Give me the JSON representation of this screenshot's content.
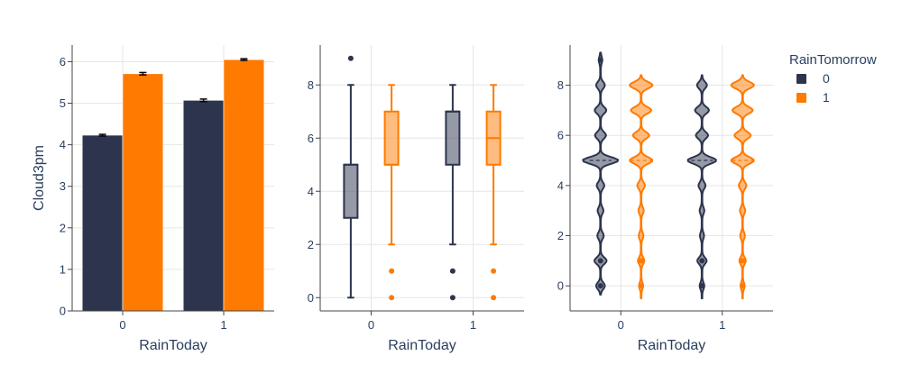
{
  "legend": {
    "title": "RainTomorrow",
    "items": [
      {
        "label": "0",
        "color": "#2d354e"
      },
      {
        "label": "1",
        "color": "#ff7a00"
      }
    ]
  },
  "chart_data": [
    {
      "type": "bar",
      "xlabel": "RainToday",
      "ylabel": "Cloud3pm",
      "categories": [
        "0",
        "1"
      ],
      "ylim": [
        0,
        6.4
      ],
      "yticks": [
        0,
        1,
        2,
        3,
        4,
        5,
        6
      ],
      "grid": true,
      "series": [
        {
          "name": "0",
          "color": "#2d354e",
          "values": [
            4.23,
            5.07
          ],
          "errors": [
            0.02,
            0.03
          ]
        },
        {
          "name": "1",
          "color": "#ff7a00",
          "values": [
            5.71,
            6.05
          ],
          "errors": [
            0.03,
            0.02
          ]
        }
      ]
    },
    {
      "type": "box",
      "xlabel": "RainToday",
      "categories": [
        "0",
        "1"
      ],
      "ylim": [
        -0.5,
        9.5
      ],
      "yticks": [
        0,
        2,
        4,
        6,
        8
      ],
      "grid": true,
      "series": [
        {
          "name": "0",
          "color": "#2d354e",
          "boxes": [
            {
              "min": 0,
              "q1": 3,
              "median": 5,
              "q3": 5,
              "max": 8,
              "outliers": [
                9
              ]
            },
            {
              "min": 2,
              "q1": 5,
              "median": 7,
              "q3": 7,
              "max": 8,
              "outliers": [
                1,
                0
              ]
            }
          ]
        },
        {
          "name": "1",
          "color": "#ff7a00",
          "boxes": [
            {
              "min": 2,
              "q1": 5,
              "median": 5,
              "q3": 7,
              "max": 8,
              "outliers": [
                1,
                0
              ]
            },
            {
              "min": 2,
              "q1": 5,
              "median": 6,
              "q3": 7,
              "max": 8,
              "outliers": [
                1,
                0
              ]
            }
          ]
        }
      ]
    },
    {
      "type": "violin",
      "xlabel": "RainToday",
      "categories": [
        "0",
        "1"
      ],
      "ylim": [
        -1,
        9.6
      ],
      "yticks": [
        0,
        2,
        4,
        6,
        8
      ],
      "grid": true,
      "series": [
        {
          "name": "0",
          "color": "#2d354e",
          "violins": [
            {
              "range": [
                -0.35,
                9.3
              ],
              "median": 5,
              "points": [
                9,
                1,
                0
              ],
              "peaks": [
                {
                  "y": 0,
                  "w": 0.7
                },
                {
                  "y": 1,
                  "w": 1.0
                },
                {
                  "y": 2,
                  "w": 0.5
                },
                {
                  "y": 3,
                  "w": 0.45
                },
                {
                  "y": 4,
                  "w": 0.6
                },
                {
                  "y": 5,
                  "w": 3.0
                },
                {
                  "y": 6,
                  "w": 0.9
                },
                {
                  "y": 7,
                  "w": 0.95
                },
                {
                  "y": 8,
                  "w": 0.7
                },
                {
                  "y": 9,
                  "w": 0.25
                }
              ]
            },
            {
              "range": [
                -0.5,
                8.4
              ],
              "median": 5,
              "points": [
                1,
                0
              ],
              "peaks": [
                {
                  "y": 0,
                  "w": 0.35
                },
                {
                  "y": 1,
                  "w": 0.75
                },
                {
                  "y": 2,
                  "w": 0.3
                },
                {
                  "y": 3,
                  "w": 0.35
                },
                {
                  "y": 4,
                  "w": 0.55
                },
                {
                  "y": 5,
                  "w": 2.4
                },
                {
                  "y": 6,
                  "w": 1.0
                },
                {
                  "y": 7,
                  "w": 1.15
                },
                {
                  "y": 8,
                  "w": 0.8
                }
              ]
            }
          ]
        },
        {
          "name": "1",
          "color": "#ff7a00",
          "violins": [
            {
              "range": [
                -0.5,
                8.4
              ],
              "median": 5,
              "points": [
                1,
                0
              ],
              "peaks": [
                {
                  "y": 0,
                  "w": 0.3
                },
                {
                  "y": 1,
                  "w": 0.5
                },
                {
                  "y": 2,
                  "w": 0.35
                },
                {
                  "y": 3,
                  "w": 0.4
                },
                {
                  "y": 4,
                  "w": 0.6
                },
                {
                  "y": 5,
                  "w": 1.9
                },
                {
                  "y": 6,
                  "w": 1.35
                },
                {
                  "y": 7,
                  "w": 1.7
                },
                {
                  "y": 8,
                  "w": 1.9
                }
              ]
            },
            {
              "range": [
                -0.5,
                8.4
              ],
              "median": 5,
              "points": [
                1,
                0
              ],
              "peaks": [
                {
                  "y": 0,
                  "w": 0.3
                },
                {
                  "y": 1,
                  "w": 0.5
                },
                {
                  "y": 2,
                  "w": 0.35
                },
                {
                  "y": 3,
                  "w": 0.4
                },
                {
                  "y": 4,
                  "w": 0.6
                },
                {
                  "y": 5,
                  "w": 1.9
                },
                {
                  "y": 6,
                  "w": 1.35
                },
                {
                  "y": 7,
                  "w": 1.7
                },
                {
                  "y": 8,
                  "w": 1.9
                }
              ]
            }
          ]
        }
      ]
    }
  ]
}
